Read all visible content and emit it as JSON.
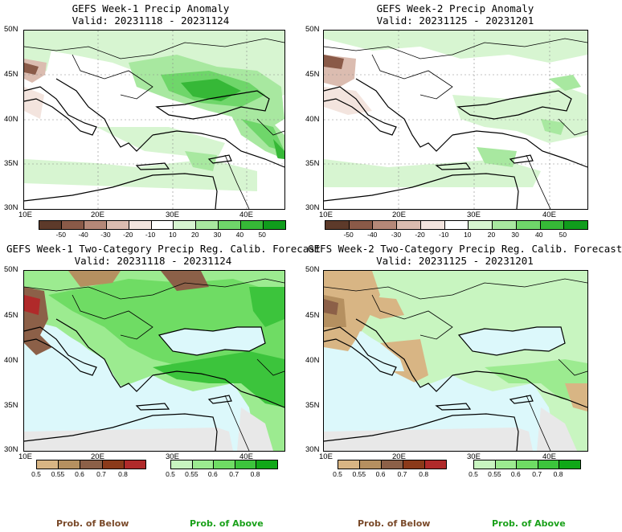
{
  "panels": [
    {
      "title": "GEFS Week-1 Precip Anomaly",
      "valid": "Valid: 20231118 - 20231124"
    },
    {
      "title": "GEFS Week-2 Precip Anomaly",
      "valid": "Valid: 20231125 - 20231201"
    },
    {
      "title": "GEFS Week-1 Two-Category Precip Reg. Calib. Forecast",
      "valid": "Valid: 20231118 - 20231124"
    },
    {
      "title": "GEFS Week-2 Two-Category Precip Reg. Calib. Forecast",
      "valid": "Valid: 20231125 - 20231201"
    }
  ],
  "lat_labels": [
    "50N",
    "45N",
    "40N",
    "35N",
    "30N"
  ],
  "lon_labels": [
    "10E",
    "20E",
    "30E",
    "40E"
  ],
  "anomaly_ticks": [
    "-50",
    "-40",
    "-30",
    "-20",
    "-10",
    "10",
    "20",
    "30",
    "40",
    "50"
  ],
  "prob_ticks": [
    "0.5",
    "0.55",
    "0.6",
    "0.7",
    "0.8"
  ],
  "legend": {
    "below": "Prob. of Below",
    "above": "Prob. of Above"
  },
  "colors": {
    "anomaly_scale": [
      "#5d3a2a",
      "#8a5a48",
      "#b58878",
      "#dbbcb0",
      "#f3e4de",
      "#ffffff",
      "#d7f5d1",
      "#a8e8a0",
      "#6fd66a",
      "#36b837",
      "#109c1c"
    ],
    "below_scale": [
      "#d8b584",
      "#b59060",
      "#8c6048",
      "#8b3a1a",
      "#b02a2a"
    ],
    "above_scale": [
      "#c8f5c0",
      "#9ceb90",
      "#6fdc64",
      "#3cc43c",
      "#10a818"
    ],
    "sea": "#dcf8fb",
    "legend_below": "#7a4a2a",
    "legend_above": "#1aa11a"
  }
}
